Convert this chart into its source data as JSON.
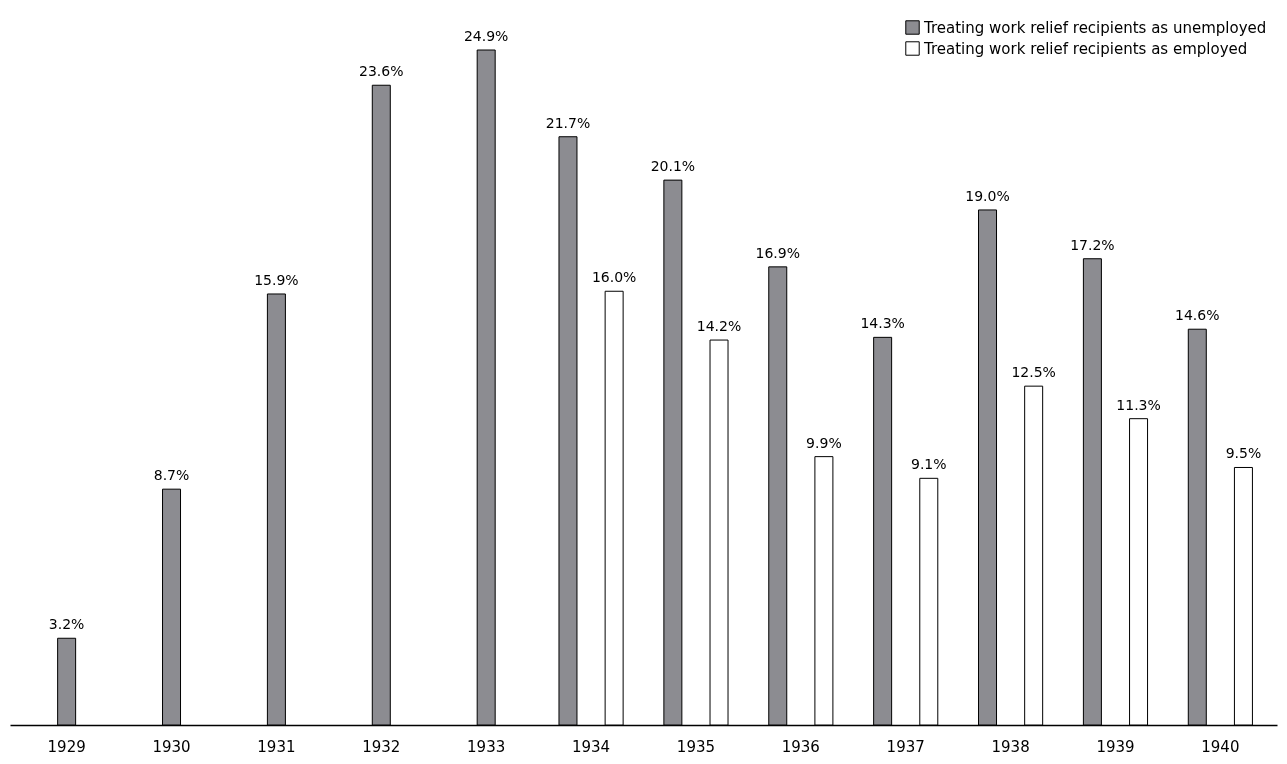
{
  "chart_data": {
    "type": "bar",
    "categories": [
      "1929",
      "1930",
      "1931",
      "1932",
      "1933",
      "1934",
      "1935",
      "1936",
      "1937",
      "1938",
      "1939",
      "1940"
    ],
    "series": [
      {
        "name": "Treating work relief recipients as unemployed",
        "color": "#8c8c91",
        "values": [
          3.2,
          8.7,
          15.9,
          23.6,
          24.9,
          21.7,
          20.1,
          16.9,
          14.3,
          19.0,
          17.2,
          14.6
        ],
        "value_labels": [
          "3.2%",
          "8.7%",
          "15.9%",
          "23.6%",
          "24.9%",
          "21.7%",
          "20.1%",
          "16.9%",
          "14.3%",
          "19.0%",
          "17.2%",
          "14.6%"
        ]
      },
      {
        "name": "Treating work relief recipients as employed",
        "color": "#ffffff",
        "values": [
          null,
          null,
          null,
          null,
          null,
          16.0,
          14.2,
          9.9,
          9.1,
          12.5,
          11.3,
          9.5
        ],
        "value_labels": [
          null,
          null,
          null,
          null,
          null,
          "16.0%",
          "14.2%",
          "9.9%",
          "9.1%",
          "12.5%",
          "11.3%",
          "9.5%"
        ]
      }
    ],
    "grid": false,
    "legend": "top right"
  }
}
